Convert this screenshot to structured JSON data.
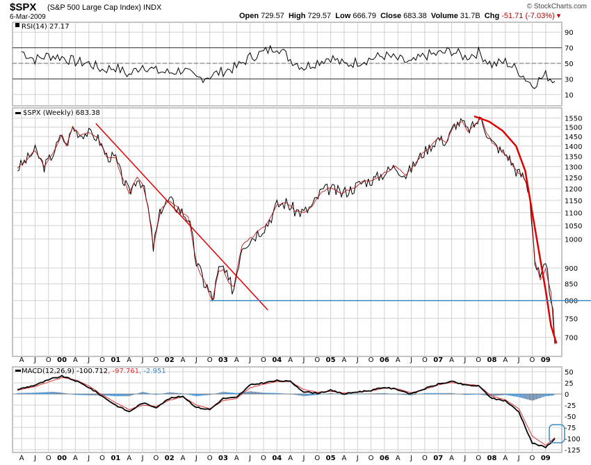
{
  "header": {
    "symbol": "$SPX",
    "name": "(S&P 500 Large Cap Index)",
    "exchange": "INDX",
    "date": "6-Mar-2009",
    "watermark": "© StockCharts.com",
    "open_label": "Open",
    "open": "729.57",
    "high_label": "High",
    "high": "729.57",
    "low_label": "Low",
    "low": "666.79",
    "close_label": "Close",
    "close": "683.38",
    "volume_label": "Volume",
    "volume": "31.7B",
    "chg_label": "Chg",
    "chg": "-51.71 (-7.03%)"
  },
  "colors": {
    "price": "#000000",
    "ma": "#b00000",
    "trend": "#e00000",
    "support": "#3b8cc4",
    "hist": "#2a74b8",
    "rsi_fill": "#4f7a4f"
  },
  "chart_data": [
    {
      "type": "line",
      "title": "RSI(14) 27.17",
      "label": "RSI(14)",
      "value": "27.17",
      "ylim": [
        0,
        100
      ],
      "yticks": [
        10,
        30,
        50,
        70,
        90
      ],
      "reference_lines": [
        30,
        50,
        70
      ],
      "series": [
        {
          "name": "RSI(14)",
          "x": [
            1999.25,
            1999.5,
            1999.75,
            2000.0,
            2000.25,
            2000.5,
            2000.75,
            2001.0,
            2001.25,
            2001.5,
            2001.75,
            2002.0,
            2002.25,
            2002.5,
            2002.75,
            2003.0,
            2003.25,
            2003.5,
            2003.75,
            2004.0,
            2004.25,
            2004.5,
            2004.75,
            2005.0,
            2005.25,
            2005.5,
            2005.75,
            2006.0,
            2006.25,
            2006.5,
            2006.75,
            2007.0,
            2007.25,
            2007.5,
            2007.75,
            2008.0,
            2008.25,
            2008.5,
            2008.75,
            2009.0,
            2009.17
          ],
          "values": [
            65,
            55,
            60,
            58,
            52,
            50,
            42,
            45,
            35,
            48,
            40,
            38,
            42,
            30,
            34,
            40,
            45,
            58,
            64,
            72,
            55,
            45,
            52,
            58,
            48,
            52,
            56,
            60,
            55,
            50,
            60,
            62,
            66,
            58,
            64,
            48,
            52,
            40,
            22,
            35,
            27
          ]
        }
      ]
    },
    {
      "type": "line",
      "title": "$SPX (Weekly) 683.38",
      "label": "$SPX (Weekly)",
      "value": "683.38",
      "ylim": [
        670,
        1600
      ],
      "yticks": [
        700,
        750,
        800,
        850,
        900,
        1000,
        1050,
        1100,
        1150,
        1200,
        1250,
        1300,
        1350,
        1400,
        1450,
        1500,
        1550
      ],
      "ytick_labels": [
        "700",
        "750",
        "800",
        "850",
        "900",
        "1000",
        "1050",
        "1100",
        "1150",
        "1200",
        "1250",
        "1300",
        "1350",
        "1400",
        "1450",
        "1500",
        "1550"
      ],
      "series": [
        {
          "name": "$SPX",
          "x": [
            1999.17,
            1999.33,
            1999.5,
            1999.67,
            1999.83,
            2000.0,
            2000.08,
            2000.2,
            2000.33,
            2000.5,
            2000.67,
            2000.83,
            2001.0,
            2001.1,
            2001.25,
            2001.4,
            2001.5,
            2001.6,
            2001.7,
            2001.85,
            2002.0,
            2002.2,
            2002.35,
            2002.5,
            2002.58,
            2002.7,
            2002.8,
            2002.92,
            2003.0,
            2003.1,
            2003.2,
            2003.35,
            2003.5,
            2003.67,
            2003.83,
            2004.0,
            2004.17,
            2004.33,
            2004.5,
            2004.67,
            2004.83,
            2005.0,
            2005.2,
            2005.4,
            2005.6,
            2005.8,
            2006.0,
            2006.2,
            2006.4,
            2006.5,
            2006.7,
            2006.9,
            2007.0,
            2007.15,
            2007.3,
            2007.45,
            2007.55,
            2007.7,
            2007.8,
            2007.9,
            2008.0,
            2008.15,
            2008.3,
            2008.45,
            2008.6,
            2008.7,
            2008.8,
            2008.9,
            2009.0,
            2009.1,
            2009.17
          ],
          "values": [
            1290,
            1330,
            1380,
            1300,
            1360,
            1460,
            1400,
            1500,
            1460,
            1470,
            1440,
            1350,
            1340,
            1260,
            1180,
            1250,
            1220,
            1120,
            970,
            1120,
            1150,
            1110,
            1080,
            920,
            880,
            840,
            800,
            890,
            900,
            850,
            840,
            980,
            1000,
            1030,
            1060,
            1130,
            1140,
            1110,
            1100,
            1130,
            1190,
            1200,
            1180,
            1200,
            1230,
            1240,
            1270,
            1300,
            1260,
            1290,
            1360,
            1410,
            1440,
            1420,
            1510,
            1530,
            1480,
            1520,
            1550,
            1470,
            1420,
            1380,
            1350,
            1280,
            1250,
            1180,
            920,
            860,
            900,
            820,
            683
          ]
        },
        {
          "name": "Trendline 2000-2003",
          "x": [
            2000.63,
            2003.83
          ],
          "values": [
            1520,
            773
          ]
        },
        {
          "name": "Parabolic decline",
          "x": [
            2007.67,
            2007.95,
            2008.2,
            2008.45,
            2008.62,
            2008.75,
            2008.88,
            2009.0,
            2009.1,
            2009.2
          ],
          "values": [
            1560,
            1530,
            1480,
            1400,
            1280,
            1100,
            950,
            830,
            730,
            685
          ]
        },
        {
          "name": "Support 800",
          "x": [
            2002.75,
            2009.3
          ],
          "values": [
            800,
            800
          ]
        }
      ]
    },
    {
      "type": "line",
      "title": "MACD(12,26,9) -100.712, -97.761, -2.951",
      "label": "MACD(12,26,9)",
      "macd": "-100.712",
      "signal": "-97.761",
      "hist": "-2.951",
      "ylim": [
        -125,
        50
      ],
      "yticks": [
        50,
        25,
        0,
        -25,
        -50,
        -75,
        -100,
        -125
      ],
      "series": [
        {
          "name": "MACD",
          "x": [
            1999.17,
            1999.5,
            1999.83,
            2000.0,
            2000.25,
            2000.5,
            2000.75,
            2001.0,
            2001.25,
            2001.5,
            2001.75,
            2002.0,
            2002.25,
            2002.5,
            2002.75,
            2003.0,
            2003.25,
            2003.5,
            2003.75,
            2004.0,
            2004.25,
            2004.5,
            2004.75,
            2005.0,
            2005.25,
            2005.5,
            2005.75,
            2006.0,
            2006.25,
            2006.5,
            2006.75,
            2007.0,
            2007.25,
            2007.5,
            2007.75,
            2008.0,
            2008.25,
            2008.5,
            2008.75,
            2009.0,
            2009.17
          ],
          "values": [
            10,
            20,
            35,
            40,
            30,
            15,
            -5,
            -25,
            -40,
            -20,
            -30,
            -10,
            -5,
            -30,
            -35,
            -10,
            -8,
            20,
            25,
            30,
            28,
            5,
            2,
            8,
            0,
            5,
            8,
            15,
            10,
            0,
            12,
            22,
            28,
            20,
            18,
            -10,
            -15,
            -40,
            -110,
            -120,
            -100
          ]
        },
        {
          "name": "Signal",
          "x": [
            1999.17,
            1999.5,
            1999.83,
            2000.0,
            2000.25,
            2000.5,
            2000.75,
            2001.0,
            2001.25,
            2001.5,
            2001.75,
            2002.0,
            2002.25,
            2002.5,
            2002.75,
            2003.0,
            2003.25,
            2003.5,
            2003.75,
            2004.0,
            2004.25,
            2004.5,
            2004.75,
            2005.0,
            2005.25,
            2005.5,
            2005.75,
            2006.0,
            2006.25,
            2006.5,
            2006.75,
            2007.0,
            2007.25,
            2007.5,
            2007.75,
            2008.0,
            2008.25,
            2008.5,
            2008.75,
            2009.0,
            2009.17
          ],
          "values": [
            8,
            17,
            30,
            37,
            32,
            18,
            -2,
            -20,
            -35,
            -25,
            -28,
            -14,
            -6,
            -25,
            -33,
            -15,
            -10,
            14,
            22,
            28,
            28,
            10,
            4,
            6,
            2,
            4,
            7,
            13,
            11,
            3,
            10,
            20,
            26,
            22,
            19,
            -5,
            -13,
            -33,
            -95,
            -115,
            -98
          ]
        },
        {
          "name": "Histogram",
          "x": [
            1999.17,
            1999.5,
            1999.83,
            2000.0,
            2000.25,
            2000.5,
            2000.75,
            2001.0,
            2001.25,
            2001.5,
            2001.75,
            2002.0,
            2002.25,
            2002.5,
            2002.75,
            2003.0,
            2003.25,
            2003.5,
            2003.75,
            2004.0,
            2004.25,
            2004.5,
            2004.75,
            2005.0,
            2005.25,
            2005.5,
            2005.75,
            2006.0,
            2006.25,
            2006.5,
            2006.75,
            2007.0,
            2007.25,
            2007.5,
            2007.75,
            2008.0,
            2008.25,
            2008.5,
            2008.75,
            2009.0,
            2009.17
          ],
          "values": [
            2,
            3,
            5,
            3,
            -2,
            -3,
            -3,
            -5,
            -5,
            5,
            -2,
            4,
            1,
            -5,
            -2,
            5,
            2,
            6,
            3,
            2,
            0,
            -5,
            -2,
            2,
            -2,
            1,
            1,
            2,
            -1,
            -3,
            2,
            2,
            2,
            -2,
            -1,
            -5,
            -2,
            -7,
            -15,
            -5,
            -3
          ]
        }
      ]
    }
  ],
  "x_axis": {
    "min": 1999.08,
    "max": 2009.3,
    "ticks": [
      {
        "x": 1999.25,
        "label": "A",
        "year": false
      },
      {
        "x": 1999.5,
        "label": "J",
        "year": false
      },
      {
        "x": 1999.75,
        "label": "O",
        "year": false
      },
      {
        "x": 2000.0,
        "label": "00",
        "year": true
      },
      {
        "x": 2000.25,
        "label": "A",
        "year": false
      },
      {
        "x": 2000.5,
        "label": "J",
        "year": false
      },
      {
        "x": 2000.75,
        "label": "O",
        "year": false
      },
      {
        "x": 2001.0,
        "label": "01",
        "year": true
      },
      {
        "x": 2001.25,
        "label": "A",
        "year": false
      },
      {
        "x": 2001.5,
        "label": "J",
        "year": false
      },
      {
        "x": 2001.75,
        "label": "O",
        "year": false
      },
      {
        "x": 2002.0,
        "label": "02",
        "year": true
      },
      {
        "x": 2002.25,
        "label": "A",
        "year": false
      },
      {
        "x": 2002.5,
        "label": "J",
        "year": false
      },
      {
        "x": 2002.75,
        "label": "O",
        "year": false
      },
      {
        "x": 2003.0,
        "label": "03",
        "year": true
      },
      {
        "x": 2003.25,
        "label": "A",
        "year": false
      },
      {
        "x": 2003.5,
        "label": "J",
        "year": false
      },
      {
        "x": 2003.75,
        "label": "O",
        "year": false
      },
      {
        "x": 2004.0,
        "label": "04",
        "year": true
      },
      {
        "x": 2004.25,
        "label": "A",
        "year": false
      },
      {
        "x": 2004.5,
        "label": "J",
        "year": false
      },
      {
        "x": 2004.75,
        "label": "O",
        "year": false
      },
      {
        "x": 2005.0,
        "label": "05",
        "year": true
      },
      {
        "x": 2005.25,
        "label": "A",
        "year": false
      },
      {
        "x": 2005.5,
        "label": "J",
        "year": false
      },
      {
        "x": 2005.75,
        "label": "O",
        "year": false
      },
      {
        "x": 2006.0,
        "label": "06",
        "year": true
      },
      {
        "x": 2006.25,
        "label": "A",
        "year": false
      },
      {
        "x": 2006.5,
        "label": "J",
        "year": false
      },
      {
        "x": 2006.75,
        "label": "O",
        "year": false
      },
      {
        "x": 2007.0,
        "label": "07",
        "year": true
      },
      {
        "x": 2007.25,
        "label": "A",
        "year": false
      },
      {
        "x": 2007.5,
        "label": "J",
        "year": false
      },
      {
        "x": 2007.75,
        "label": "O",
        "year": false
      },
      {
        "x": 2008.0,
        "label": "08",
        "year": true
      },
      {
        "x": 2008.25,
        "label": "A",
        "year": false
      },
      {
        "x": 2008.5,
        "label": "J",
        "year": false
      },
      {
        "x": 2008.75,
        "label": "O",
        "year": false
      },
      {
        "x": 2009.0,
        "label": "09",
        "year": true
      }
    ]
  }
}
